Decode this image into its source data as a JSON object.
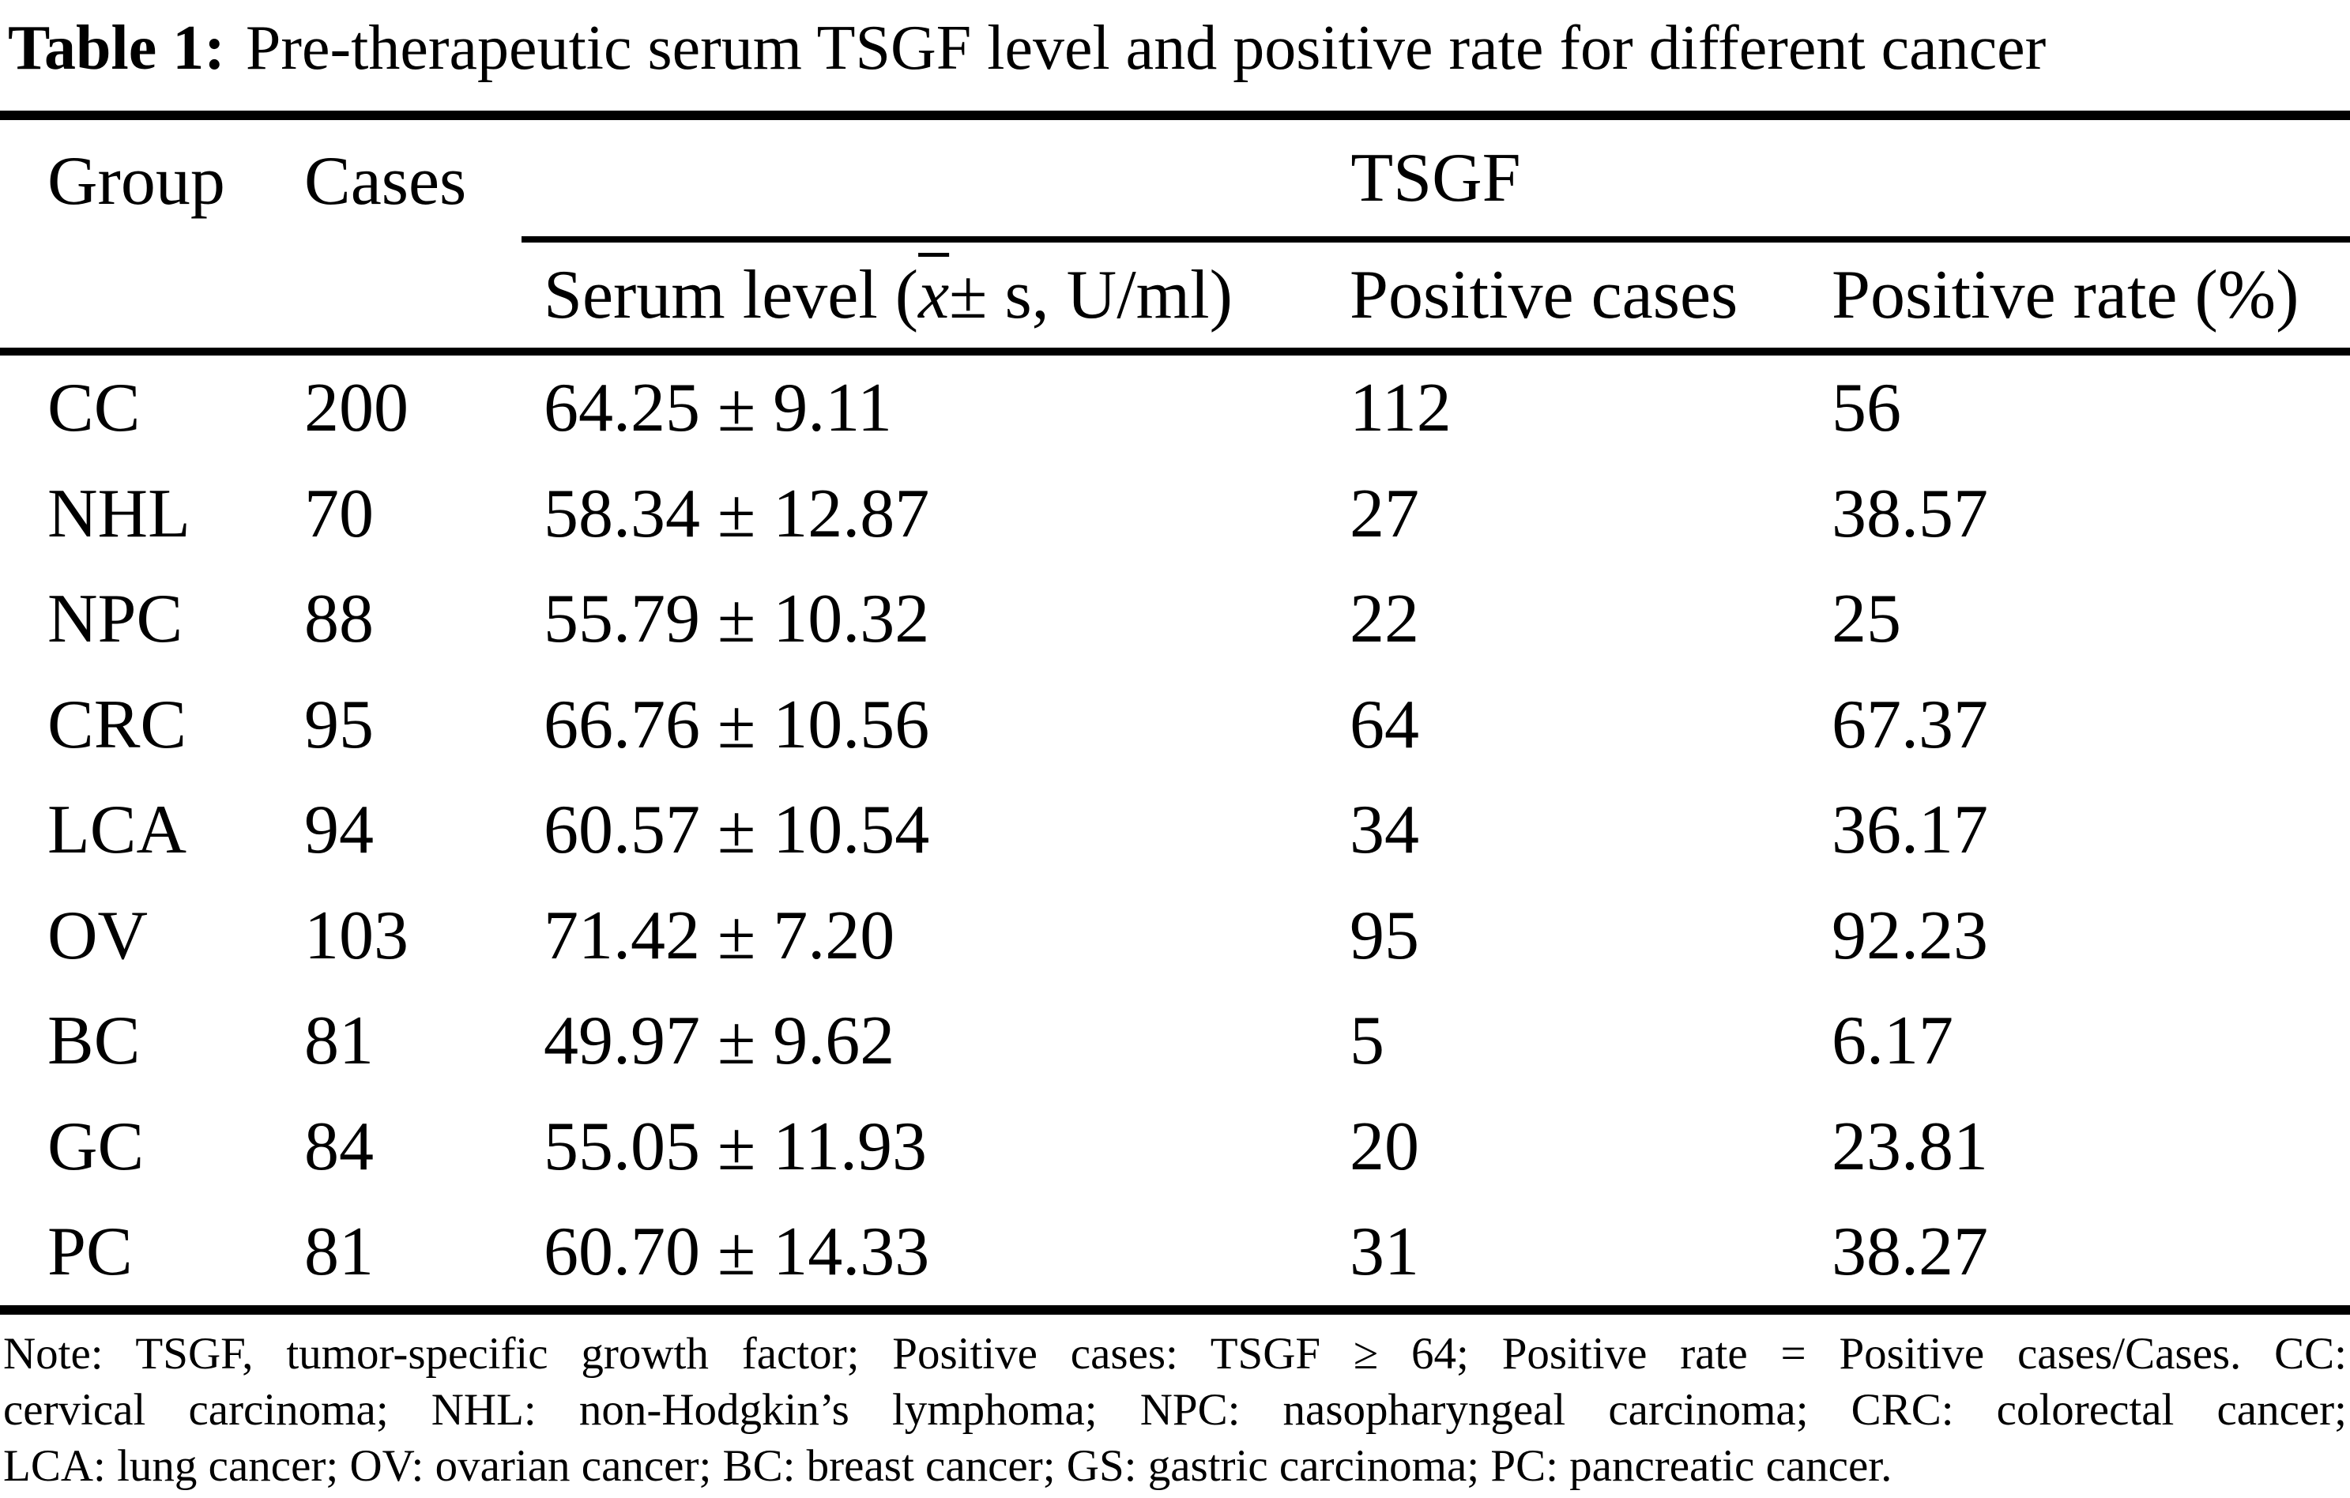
{
  "colors": {
    "text": "#000000",
    "background": "#ffffff"
  },
  "title": {
    "label": "Table 1:",
    "text": "Pre-therapeutic serum TSGF level and positive rate for different cancer"
  },
  "table": {
    "header": {
      "group": "Group",
      "cases": "Cases",
      "tsgf": "TSGF",
      "serum_prefix": "Serum level (",
      "serum_xbar": "x",
      "serum_suffix": " ± s, U/ml)",
      "positive_cases": "Positive cases",
      "positive_rate": "Positive rate (%)"
    },
    "rows": [
      {
        "group": "CC",
        "cases": "200",
        "serum": "64.25 ± 9.11",
        "positive_cases": "112",
        "positive_rate": "56"
      },
      {
        "group": "NHL",
        "cases": "70",
        "serum": "58.34 ± 12.87",
        "positive_cases": "27",
        "positive_rate": "38.57"
      },
      {
        "group": "NPC",
        "cases": "88",
        "serum": "55.79 ± 10.32",
        "positive_cases": "22",
        "positive_rate": "25"
      },
      {
        "group": "CRC",
        "cases": "95",
        "serum": "66.76 ± 10.56",
        "positive_cases": "64",
        "positive_rate": "67.37"
      },
      {
        "group": "LCA",
        "cases": "94",
        "serum": "60.57 ± 10.54",
        "positive_cases": "34",
        "positive_rate": "36.17"
      },
      {
        "group": "OV",
        "cases": "103",
        "serum": "71.42 ± 7.20",
        "positive_cases": "95",
        "positive_rate": "92.23"
      },
      {
        "group": "BC",
        "cases": "81",
        "serum": "49.97 ± 9.62",
        "positive_cases": "5",
        "positive_rate": "6.17"
      },
      {
        "group": "GC",
        "cases": "84",
        "serum": "55.05 ± 11.93",
        "positive_cases": "20",
        "positive_rate": "23.81"
      },
      {
        "group": "PC",
        "cases": "81",
        "serum": "60.70 ± 14.33",
        "positive_cases": "31",
        "positive_rate": "38.27"
      }
    ]
  },
  "note": {
    "line1": "Note: TSGF, tumor-specific growth factor; Positive cases: TSGF ≥ 64; Positive rate = Positive cases/Cases. CC:",
    "line2": "cervical carcinoma; NHL: non-Hodgkin’s lymphoma; NPC: nasopharyngeal carcinoma; CRC: colorectal cancer;",
    "line3": "LCA: lung cancer; OV: ovarian cancer; BC: breast cancer; GS: gastric carcinoma; PC: pancreatic cancer."
  },
  "chart_data": {
    "type": "table",
    "title": "Table 1: Pre-therapeutic serum TSGF level and positive rate for different cancer",
    "columns": [
      "Group",
      "Cases",
      "Serum level (x̄ ± s, U/ml)",
      "Positive cases",
      "Positive rate (%)"
    ],
    "rows": [
      [
        "CC",
        200,
        "64.25 ± 9.11",
        112,
        56
      ],
      [
        "NHL",
        70,
        "58.34 ± 12.87",
        27,
        38.57
      ],
      [
        "NPC",
        88,
        "55.79 ± 10.32",
        22,
        25
      ],
      [
        "CRC",
        95,
        "66.76 ± 10.56",
        64,
        67.37
      ],
      [
        "LCA",
        94,
        "60.57 ± 10.54",
        34,
        36.17
      ],
      [
        "OV",
        103,
        "71.42 ± 7.20",
        95,
        92.23
      ],
      [
        "BC",
        81,
        "49.97 ± 9.62",
        5,
        6.17
      ],
      [
        "GC",
        84,
        "55.05 ± 11.93",
        20,
        23.81
      ],
      [
        "PC",
        81,
        "60.70 ± 14.33",
        31,
        38.27
      ]
    ]
  }
}
